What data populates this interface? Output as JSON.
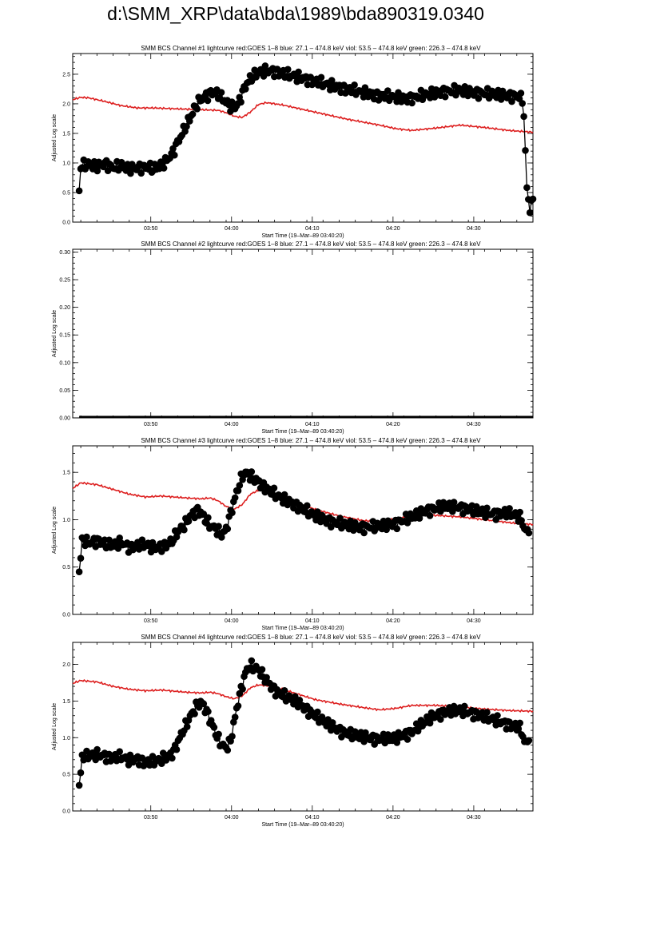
{
  "page": {
    "title": "d:\\SMM_XRP\\data\\bda\\1989\\bda890319.0340"
  },
  "colors": {
    "goes": "#dd1f1f",
    "bcs": "#000000",
    "axis": "#000000"
  },
  "chart_data": [
    {
      "type": "line",
      "title": "SMM BCS Channel #1 lightcurve  red:GOES 1–8  blue: 27.1 – 474.8 keV  viol: 53.5 – 474.8 keV  green: 226.3 – 474.8 keV",
      "xlabel": "Start Time (19–Mar–89 03:40:20)",
      "ylabel": "Adjusted Log scale",
      "xlim": [
        0,
        57
      ],
      "ylim": [
        0,
        2.85
      ],
      "yticks": [
        0.0,
        0.5,
        1.0,
        1.5,
        2.0,
        2.5
      ],
      "ytick_labels": [
        "0.0",
        "0.5",
        "1.0",
        "1.5",
        "2.0",
        "2.5"
      ],
      "xtick_values": [
        9.67,
        19.67,
        29.67,
        39.67,
        49.67
      ],
      "xtick_labels": [
        "03:50",
        "04:00",
        "04:10",
        "04:20",
        "04:30"
      ],
      "x_minor_step": 2,
      "series": [
        {
          "name": "GOES 1–8",
          "color": "#dd1f1f",
          "marker": "none",
          "x": [
            0,
            1,
            2,
            4,
            6,
            8,
            10,
            14,
            18,
            19,
            20,
            21,
            22,
            23,
            24,
            26,
            30,
            34,
            38,
            40,
            42,
            45,
            48,
            51,
            54,
            57
          ],
          "y": [
            2.07,
            2.11,
            2.1,
            2.04,
            1.97,
            1.93,
            1.93,
            1.91,
            1.89,
            1.85,
            1.79,
            1.77,
            1.86,
            1.99,
            2.02,
            1.98,
            1.86,
            1.74,
            1.64,
            1.58,
            1.55,
            1.59,
            1.64,
            1.6,
            1.55,
            1.52
          ]
        },
        {
          "name": "BCS Channel #1",
          "color": "#000000",
          "marker": "circle",
          "x": [
            0.8,
            1,
            2,
            3,
            4,
            5,
            6,
            7,
            8,
            9,
            10,
            11,
            11.5,
            12,
            12.5,
            13,
            13.5,
            14,
            14.5,
            15,
            15.5,
            16,
            16.5,
            17,
            17.5,
            18,
            18.5,
            19,
            19.5,
            20,
            20.5,
            21,
            21.5,
            22,
            22.5,
            23,
            24,
            25,
            26,
            28,
            30,
            32,
            34,
            36,
            38,
            40,
            41,
            42,
            44,
            46,
            48,
            50,
            52,
            54,
            55,
            55.8,
            56.2,
            56.6,
            57
          ],
          "y": [
            0.53,
            0.95,
            0.97,
            0.94,
            0.99,
            0.92,
            0.95,
            0.9,
            0.92,
            0.93,
            0.9,
            0.96,
            1.02,
            1.1,
            1.2,
            1.35,
            1.48,
            1.62,
            1.75,
            1.9,
            2.02,
            2.08,
            2.13,
            2.18,
            2.2,
            2.15,
            2.1,
            2.03,
            1.96,
            1.93,
            2.0,
            2.18,
            2.33,
            2.42,
            2.48,
            2.53,
            2.56,
            2.55,
            2.51,
            2.45,
            2.38,
            2.31,
            2.25,
            2.19,
            2.14,
            2.11,
            2.09,
            2.1,
            2.16,
            2.21,
            2.22,
            2.19,
            2.16,
            2.14,
            2.13,
            2.07,
            0.67,
            0.19,
            0.39
          ]
        }
      ]
    },
    {
      "type": "line",
      "title": "SMM BCS Channel #2 lightcurve  red:GOES 1–8  blue: 27.1 – 474.8 keV  viol: 53.5 – 474.8 keV  green: 226.3 – 474.8 keV",
      "xlabel": "Start Time (19–Mar–89 03:40:20)",
      "ylabel": "Adjusted Log scale",
      "xlim": [
        0,
        57
      ],
      "ylim": [
        0,
        0.305
      ],
      "yticks": [
        0.0,
        0.05,
        0.1,
        0.15,
        0.2,
        0.25,
        0.3
      ],
      "ytick_labels": [
        "0.00",
        "0.05",
        "0.10",
        "0.15",
        "0.20",
        "0.25",
        "0.30"
      ],
      "xtick_values": [
        9.67,
        19.67,
        29.67,
        39.67,
        49.67
      ],
      "xtick_labels": [
        "03:50",
        "04:00",
        "04:10",
        "04:20",
        "04:30"
      ],
      "x_minor_step": 2,
      "series": [
        {
          "name": "BCS Channel #2",
          "color": "#000000",
          "marker": "flatline",
          "x": [
            0.8,
            57
          ],
          "y": [
            0.0,
            0.0
          ]
        }
      ]
    },
    {
      "type": "line",
      "title": "SMM BCS Channel #3 lightcurve  red:GOES 1–8  blue: 27.1 – 474.8 keV  viol: 53.5 – 474.8 keV  green: 226.3 – 474.8 keV",
      "xlabel": "Start Time (19–Mar–89 03:40:20)",
      "ylabel": "Adjusted Log scale",
      "xlim": [
        0,
        57
      ],
      "ylim": [
        0,
        1.78
      ],
      "yticks": [
        0.0,
        0.5,
        1.0,
        1.5
      ],
      "ytick_labels": [
        "0.0",
        "0.5",
        "1.0",
        "1.5"
      ],
      "xtick_values": [
        9.67,
        19.67,
        29.67,
        39.67,
        49.67
      ],
      "xtick_labels": [
        "03:50",
        "04:00",
        "04:10",
        "04:20",
        "04:30"
      ],
      "x_minor_step": 2,
      "series": [
        {
          "name": "GOES 1–8",
          "color": "#dd1f1f",
          "marker": "none",
          "x": [
            0,
            1,
            3,
            5,
            7,
            9,
            11,
            14,
            16,
            17,
            18,
            19,
            20,
            21,
            22,
            23,
            24,
            26,
            28,
            30,
            33,
            36,
            38,
            40,
            42,
            44,
            46,
            48,
            50,
            52,
            55,
            57
          ],
          "y": [
            1.33,
            1.39,
            1.37,
            1.32,
            1.27,
            1.24,
            1.25,
            1.23,
            1.22,
            1.23,
            1.2,
            1.14,
            1.11,
            1.16,
            1.27,
            1.31,
            1.3,
            1.24,
            1.17,
            1.11,
            1.04,
            0.99,
            0.98,
            1.01,
            1.04,
            1.05,
            1.04,
            1.03,
            1.01,
            0.99,
            0.96,
            0.95
          ]
        },
        {
          "name": "BCS Channel #3",
          "color": "#000000",
          "marker": "circle",
          "x": [
            0.8,
            1.2,
            2,
            3,
            4,
            5,
            6,
            7,
            8,
            9,
            10,
            11,
            12,
            12.5,
            13,
            13.5,
            14,
            14.5,
            15,
            15.5,
            16,
            16.5,
            17,
            17.5,
            18,
            18.5,
            19,
            19.5,
            20,
            20.5,
            21,
            21.5,
            22,
            23,
            24,
            25,
            26,
            28,
            30,
            32,
            34,
            36,
            38,
            40,
            42,
            44,
            46,
            48,
            50,
            52,
            54,
            55,
            55.5,
            56,
            56.5
          ],
          "y": [
            0.45,
            0.8,
            0.75,
            0.78,
            0.74,
            0.73,
            0.76,
            0.71,
            0.72,
            0.74,
            0.7,
            0.72,
            0.75,
            0.8,
            0.87,
            0.92,
            0.96,
            1.03,
            1.07,
            1.1,
            1.06,
            0.99,
            0.94,
            0.92,
            0.88,
            0.84,
            0.9,
            1.05,
            1.2,
            1.34,
            1.46,
            1.5,
            1.46,
            1.4,
            1.33,
            1.27,
            1.22,
            1.14,
            1.04,
            0.98,
            0.94,
            0.92,
            0.93,
            0.96,
            1.03,
            1.1,
            1.14,
            1.13,
            1.09,
            1.06,
            1.07,
            1.04,
            1.02,
            0.89,
            0.86
          ]
        }
      ]
    },
    {
      "type": "line",
      "title": "SMM BCS Channel #4 lightcurve  red:GOES 1–8  blue: 27.1 – 474.8 keV  viol: 53.5 – 474.8 keV  green: 226.3 – 474.8 keV",
      "xlabel": "Start Time (19–Mar–89 03:40:20)",
      "ylabel": "Adjusted Log scale",
      "xlim": [
        0,
        57
      ],
      "ylim": [
        0,
        2.3
      ],
      "yticks": [
        0.0,
        0.5,
        1.0,
        1.5,
        2.0
      ],
      "ytick_labels": [
        "0.0",
        "0.5",
        "1.0",
        "1.5",
        "2.0"
      ],
      "xtick_values": [
        9.67,
        19.67,
        29.67,
        39.67,
        49.67
      ],
      "xtick_labels": [
        "03:50",
        "04:00",
        "04:10",
        "04:20",
        "04:30"
      ],
      "x_minor_step": 2,
      "series": [
        {
          "name": "GOES 1–8",
          "color": "#dd1f1f",
          "marker": "none",
          "x": [
            0,
            1,
            3,
            5,
            7,
            9,
            11,
            14,
            16,
            17,
            18,
            19,
            20,
            21,
            22,
            23,
            24,
            26,
            28,
            30,
            33,
            36,
            38,
            40,
            42,
            45,
            48,
            51,
            54,
            57
          ],
          "y": [
            1.74,
            1.78,
            1.76,
            1.7,
            1.66,
            1.64,
            1.65,
            1.62,
            1.61,
            1.62,
            1.6,
            1.56,
            1.53,
            1.57,
            1.68,
            1.72,
            1.71,
            1.66,
            1.59,
            1.52,
            1.46,
            1.41,
            1.38,
            1.4,
            1.44,
            1.44,
            1.42,
            1.39,
            1.37,
            1.36
          ]
        },
        {
          "name": "BCS Channel #4",
          "color": "#000000",
          "marker": "circle",
          "x": [
            0.8,
            1.2,
            2,
            3,
            4,
            5,
            6,
            7,
            8,
            9,
            10,
            11,
            12,
            12.5,
            13,
            13.5,
            14,
            14.5,
            15,
            15.5,
            16,
            16.5,
            17,
            17.5,
            18,
            18.5,
            19,
            19.5,
            20,
            20.5,
            21,
            21.5,
            22,
            23,
            24,
            25,
            26,
            28,
            30,
            32,
            34,
            36,
            38,
            40,
            42,
            44,
            46,
            48,
            50,
            52,
            54,
            55,
            55.5,
            56,
            56.5
          ],
          "y": [
            0.35,
            0.74,
            0.75,
            0.77,
            0.75,
            0.72,
            0.74,
            0.69,
            0.71,
            0.66,
            0.67,
            0.71,
            0.75,
            0.81,
            0.93,
            1.06,
            1.16,
            1.28,
            1.37,
            1.45,
            1.48,
            1.38,
            1.25,
            1.12,
            0.98,
            0.9,
            0.86,
            0.93,
            1.22,
            1.5,
            1.72,
            1.92,
            1.98,
            1.93,
            1.78,
            1.65,
            1.58,
            1.47,
            1.3,
            1.16,
            1.05,
            1.01,
            0.98,
            0.99,
            1.08,
            1.25,
            1.35,
            1.37,
            1.32,
            1.25,
            1.18,
            1.15,
            1.12,
            0.92,
            0.96
          ]
        }
      ]
    }
  ]
}
